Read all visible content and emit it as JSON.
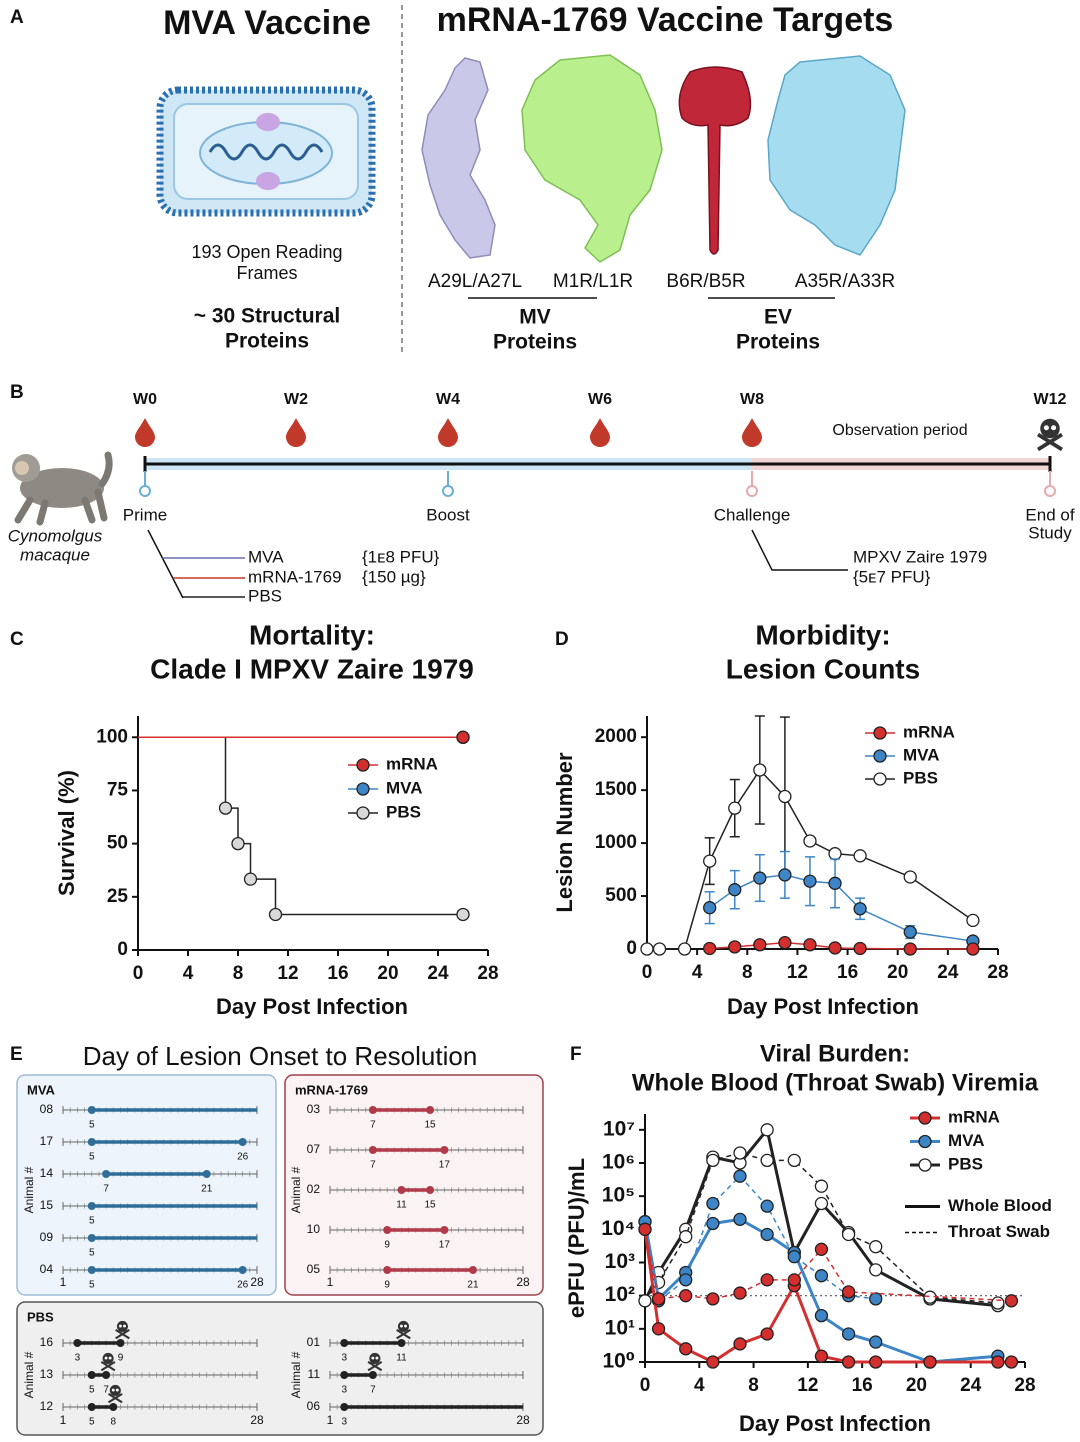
{
  "panel_labels": [
    "A",
    "B",
    "C",
    "D",
    "E",
    "F"
  ],
  "panel_a": {
    "mva_title": "MVA Vaccine",
    "orf_text": [
      "193 Open Reading",
      "Frames"
    ],
    "structural_text": [
      "~ 30 Structural",
      "Proteins"
    ],
    "mrna_title": "mRNA-1769 Vaccine Targets",
    "targets": [
      "A29L/A27L",
      "M1R/L1R",
      "B6R/B5R",
      "A35R/A33R"
    ],
    "groups": [
      [
        "MV",
        "Proteins"
      ],
      [
        "EV",
        "Proteins"
      ]
    ]
  },
  "panel_b": {
    "weeks": [
      "W0",
      "W2",
      "W4",
      "W6",
      "W8",
      "W12"
    ],
    "observation": "Observation period",
    "events": [
      [
        "Prime"
      ],
      [
        "Boost"
      ],
      [
        "Challenge"
      ],
      [
        "End of",
        "Study"
      ]
    ],
    "species": [
      "Cynomolgus",
      "macaque"
    ],
    "arms": [
      {
        "name": "MVA",
        "dose": "{1ᴇ8 PFU}",
        "color": "#6b6fa8"
      },
      {
        "name": "mRNA-1769",
        "dose": "{150 µg}",
        "color": "#c0392b"
      },
      {
        "name": "PBS",
        "color": "#222222"
      }
    ],
    "challenge": [
      "MPXV Zaire 1979",
      "{5ᴇ7 PFU}"
    ]
  },
  "chart_data": [
    {
      "type": "step",
      "title": [
        "Mortality:",
        "Clade I MPXV Zaire 1979"
      ],
      "xlabel": "Day Post Infection",
      "ylabel": "Survival (%)",
      "xlim": [
        0,
        28
      ],
      "xticks": [
        0,
        4,
        8,
        12,
        16,
        20,
        24,
        28
      ],
      "ylim": [
        0,
        110
      ],
      "yticks": [
        0,
        25,
        50,
        75,
        100
      ],
      "series": [
        {
          "name": "mRNA",
          "color": "#d32f2f",
          "marker_fill": "#d32f2f",
          "x": [
            0,
            26
          ],
          "values": [
            100,
            100
          ]
        },
        {
          "name": "MVA",
          "color": "#3d85c6",
          "marker_fill": "#3d85c6",
          "x": [
            0,
            26
          ],
          "values": [
            100,
            100
          ]
        },
        {
          "name": "PBS",
          "color": "#222222",
          "marker_fill": "#d9d9d9",
          "x": [
            0,
            7,
            8,
            9,
            11,
            26
          ],
          "values": [
            100,
            66.7,
            50,
            33.3,
            16.7,
            16.7
          ]
        }
      ]
    },
    {
      "type": "line",
      "title": [
        "Morbidity:",
        "Lesion Counts"
      ],
      "xlabel": "Day Post Infection",
      "ylabel": "Lesion Number",
      "xlim": [
        0,
        28
      ],
      "xticks": [
        0,
        4,
        8,
        12,
        16,
        20,
        24,
        28
      ],
      "ylim": [
        0,
        2200
      ],
      "yticks": [
        0,
        500,
        1000,
        1500,
        2000
      ],
      "series": [
        {
          "name": "mRNA",
          "color": "#d32f2f",
          "marker_fill": "#d32f2f",
          "x": [
            5,
            7,
            9,
            11,
            13,
            15,
            17,
            21,
            26
          ],
          "values": [
            5,
            20,
            40,
            60,
            40,
            10,
            5,
            0,
            0
          ]
        },
        {
          "name": "MVA",
          "color": "#3d85c6",
          "marker_fill": "#3d85c6",
          "x": [
            5,
            7,
            9,
            11,
            13,
            15,
            17,
            21,
            26
          ],
          "values": [
            390,
            560,
            670,
            700,
            640,
            620,
            380,
            160,
            75
          ],
          "errors": [
            150,
            180,
            220,
            220,
            230,
            230,
            100,
            60,
            20
          ]
        },
        {
          "name": "PBS",
          "color": "#222222",
          "marker_fill": "#ffffff",
          "x": [
            0,
            1,
            3,
            5,
            7,
            9,
            11,
            13,
            15,
            17,
            21,
            26
          ],
          "values": [
            0,
            0,
            0,
            830,
            1330,
            1690,
            1440,
            1020,
            900,
            880,
            680,
            270
          ],
          "errors": [
            0,
            0,
            0,
            220,
            270,
            510,
            750,
            0,
            0,
            0,
            0,
            0
          ]
        }
      ]
    },
    {
      "type": "timeline",
      "title": "Day of Lesion Onset to Resolution",
      "ylabel": "Animal #",
      "xlim": [
        1,
        28
      ],
      "xticks": [
        1,
        28
      ],
      "panels": [
        {
          "name": "MVA",
          "color": "#2f6e99",
          "animals": [
            {
              "id": "08",
              "onset": 5,
              "end": null
            },
            {
              "id": "17",
              "onset": 5,
              "end": 26
            },
            {
              "id": "14",
              "onset": 7,
              "end": 21
            },
            {
              "id": "15",
              "onset": 5,
              "end": null
            },
            {
              "id": "09",
              "onset": 5,
              "end": null
            },
            {
              "id": "04",
              "onset": 5,
              "end": 26
            }
          ]
        },
        {
          "name": "mRNA-1769",
          "color": "#b03a48",
          "animals": [
            {
              "id": "03",
              "onset": 7,
              "end": 15
            },
            {
              "id": "07",
              "onset": 7,
              "end": 17
            },
            {
              "id": "02",
              "onset": 11,
              "end": 15
            },
            {
              "id": "10",
              "onset": 9,
              "end": 17
            },
            {
              "id": "05",
              "onset": 9,
              "end": 21
            }
          ]
        },
        {
          "name": "PBS",
          "color": "#222222",
          "animals": [
            {
              "id": "16",
              "onset": 3,
              "end": 9,
              "died": true
            },
            {
              "id": "13",
              "onset": 5,
              "end": 7,
              "died": true
            },
            {
              "id": "12",
              "onset": 5,
              "end": 8,
              "died": true
            },
            {
              "id": "01",
              "onset": 3,
              "end": 11,
              "died": true
            },
            {
              "id": "11",
              "onset": 3,
              "end": 7,
              "died": true
            },
            {
              "id": "06",
              "onset": 3,
              "end": null
            }
          ]
        }
      ]
    },
    {
      "type": "line",
      "title": [
        "Viral Burden:",
        "Whole Blood (Throat Swab) Viremia"
      ],
      "xlabel": "Day Post Infection",
      "ylabel": "ePFU (PFU)/mL",
      "yscale": "log",
      "xlim": [
        0,
        28
      ],
      "xticks": [
        0,
        4,
        8,
        12,
        16,
        20,
        24,
        28
      ],
      "ylim": [
        1,
        30000000
      ],
      "yticks": [
        {
          "value": 1,
          "label": "10⁰"
        },
        {
          "value": 10,
          "label": "10¹"
        },
        {
          "value": 100,
          "label": "10²"
        },
        {
          "value": 1000,
          "label": "10³"
        },
        {
          "value": 10000,
          "label": "10⁴"
        },
        {
          "value": 100000,
          "label": "10⁵"
        },
        {
          "value": 1000000,
          "label": "10⁶"
        },
        {
          "value": 10000000,
          "label": "10⁷"
        }
      ],
      "reference_line": 100,
      "line_styles": [
        {
          "name": "Whole Blood",
          "dash": "solid"
        },
        {
          "name": "Throat Swab",
          "dash": "dashed"
        }
      ],
      "series": [
        {
          "name": "mRNA",
          "color": "#d32f2f",
          "marker_fill": "#d32f2f",
          "lines": [
            {
              "x": [
                0,
                1,
                3,
                5,
                7,
                9,
                11,
                13,
                15,
                17,
                21,
                26,
                27
              ],
              "values": [
                10000,
                10,
                2.5,
                1,
                3.5,
                7,
                200,
                1.5,
                1,
                1,
                1,
                1,
                1
              ]
            },
            {
              "x": [
                0,
                1,
                3,
                5,
                7,
                9,
                11,
                13,
                15,
                27
              ],
              "values": [
                10000,
                80,
                100,
                80,
                120,
                300,
                300,
                2500,
                130,
                70
              ]
            }
          ]
        },
        {
          "name": "MVA",
          "color": "#3d85c6",
          "marker_fill": "#3d85c6",
          "lines": [
            {
              "x": [
                0,
                1,
                3,
                5,
                7,
                9,
                11,
                13,
                15,
                17,
                21,
                26
              ],
              "values": [
                17000,
                80,
                500,
                15000,
                20000,
                7000,
                2000,
                25,
                7,
                4,
                1,
                1.5
              ]
            },
            {
              "x": [
                0,
                1,
                3,
                5,
                7,
                9,
                11,
                13,
                15,
                17
              ],
              "values": [
                17000,
                70,
                300,
                60000,
                400000,
                50000,
                1500,
                400,
                100,
                80
              ]
            }
          ]
        },
        {
          "name": "PBS",
          "color": "#222222",
          "marker_fill": "#ffffff",
          "lines": [
            {
              "x": [
                0,
                1,
                3,
                5,
                7,
                9,
                11,
                13,
                15,
                17,
                21,
                26
              ],
              "values": [
                70,
                500,
                10000,
                1500000,
                1000000,
                10000000,
                2000,
                60000,
                8000,
                600,
                80,
                50
              ]
            },
            {
              "x": [
                0,
                1,
                3,
                5,
                7,
                9,
                11,
                13,
                15,
                17,
                21,
                26
              ],
              "values": [
                70,
                250,
                6000,
                1200000,
                2000000,
                1200000,
                1200000,
                200000,
                7000,
                3000,
                90,
                60
              ]
            }
          ]
        }
      ]
    }
  ]
}
